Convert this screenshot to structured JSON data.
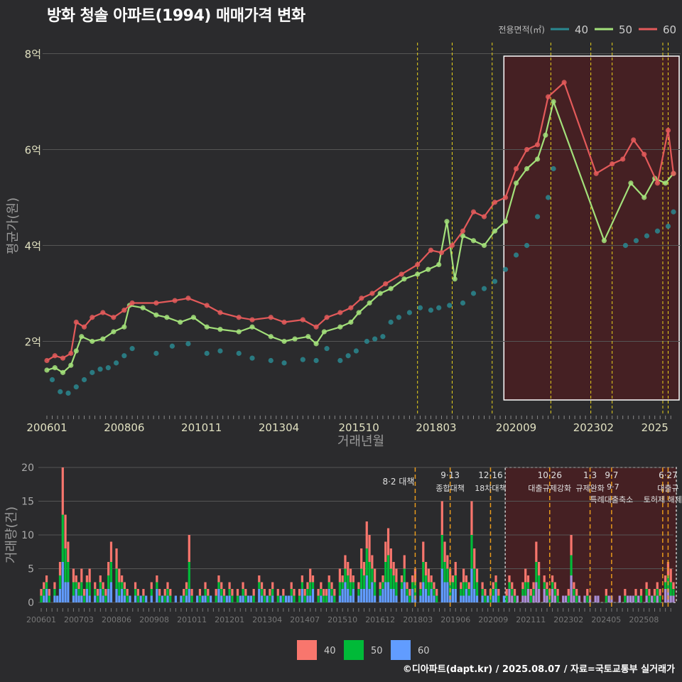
{
  "chart_data": {
    "title": "방화 청솔 아파트(1994) 매매가격 변화",
    "type": "line",
    "price_chart": {
      "xlabel": "거래년월",
      "ylabel": "평균가(원)",
      "x_range": [
        "2006-01",
        "2025-08"
      ],
      "y_range": [
        0.6,
        8.2
      ],
      "y_ticks": [
        {
          "v": 2,
          "label": "2억"
        },
        {
          "v": 4,
          "label": "4억"
        },
        {
          "v": 6,
          "label": "6억"
        },
        {
          "v": 8,
          "label": "8억"
        }
      ],
      "x_ticks": [
        "200601",
        "200806",
        "201011",
        "201304",
        "201510",
        "201803",
        "202009",
        "202302",
        "2025"
      ],
      "legend_title": "전용면적(㎡)",
      "series": [
        {
          "name": "40",
          "color": "#2a8890",
          "points": [
            [
              "2006-03",
              1.2
            ],
            [
              "2006-06",
              0.95
            ],
            [
              "2006-09",
              0.92
            ],
            [
              "2006-12",
              1.05
            ],
            [
              "2007-03",
              1.2
            ],
            [
              "2007-06",
              1.35
            ],
            [
              "2007-09",
              1.42
            ],
            [
              "2007-12",
              1.45
            ],
            [
              "2008-03",
              1.55
            ],
            [
              "2008-06",
              1.7
            ],
            [
              "2008-09",
              1.85
            ],
            [
              "2009-06",
              1.75
            ],
            [
              "2009-12",
              1.9
            ],
            [
              "2010-06",
              1.95
            ],
            [
              "2011-01",
              1.75
            ],
            [
              "2011-06",
              1.8
            ],
            [
              "2012-01",
              1.75
            ],
            [
              "2012-06",
              1.65
            ],
            [
              "2013-01",
              1.6
            ],
            [
              "2013-06",
              1.55
            ],
            [
              "2014-01",
              1.62
            ],
            [
              "2014-06",
              1.6
            ],
            [
              "2014-10",
              1.85
            ],
            [
              "2015-03",
              1.6
            ],
            [
              "2015-06",
              1.7
            ],
            [
              "2015-09",
              1.8
            ],
            [
              "2016-01",
              2.0
            ],
            [
              "2016-04",
              2.05
            ],
            [
              "2016-07",
              2.1
            ],
            [
              "2016-10",
              2.4
            ],
            [
              "2017-01",
              2.5
            ],
            [
              "2017-05",
              2.6
            ],
            [
              "2017-09",
              2.7
            ],
            [
              "2018-01",
              2.65
            ],
            [
              "2018-04",
              2.7
            ],
            [
              "2018-08",
              2.75
            ],
            [
              "2019-01",
              2.8
            ],
            [
              "2019-05",
              3.0
            ],
            [
              "2019-09",
              3.1
            ],
            [
              "2020-01",
              3.25
            ],
            [
              "2020-05",
              3.5
            ],
            [
              "2020-09",
              3.8
            ],
            [
              "2021-01",
              4.0
            ],
            [
              "2021-05",
              4.6
            ],
            [
              "2021-09",
              5.0
            ],
            [
              "2021-11",
              5.6
            ],
            [
              "2024-02",
              4.0
            ],
            [
              "2024-06",
              4.1
            ],
            [
              "2024-10",
              4.2
            ],
            [
              "2025-02",
              4.3
            ],
            [
              "2025-06",
              4.4
            ],
            [
              "2025-08",
              4.7
            ]
          ]
        },
        {
          "name": "50",
          "color": "#a3e07a",
          "points": [
            [
              "2006-01",
              1.4
            ],
            [
              "2006-04",
              1.45
            ],
            [
              "2006-07",
              1.35
            ],
            [
              "2006-10",
              1.5
            ],
            [
              "2006-12",
              1.8
            ],
            [
              "2007-02",
              2.1
            ],
            [
              "2007-06",
              2.0
            ],
            [
              "2007-10",
              2.05
            ],
            [
              "2008-02",
              2.2
            ],
            [
              "2008-06",
              2.3
            ],
            [
              "2008-08",
              2.75
            ],
            [
              "2009-01",
              2.7
            ],
            [
              "2009-06",
              2.55
            ],
            [
              "2009-10",
              2.5
            ],
            [
              "2010-03",
              2.4
            ],
            [
              "2010-08",
              2.5
            ],
            [
              "2011-01",
              2.3
            ],
            [
              "2011-06",
              2.25
            ],
            [
              "2012-01",
              2.2
            ],
            [
              "2012-06",
              2.3
            ],
            [
              "2013-01",
              2.1
            ],
            [
              "2013-06",
              2.0
            ],
            [
              "2013-10",
              2.05
            ],
            [
              "2014-03",
              2.1
            ],
            [
              "2014-06",
              1.95
            ],
            [
              "2014-09",
              2.2
            ],
            [
              "2015-03",
              2.3
            ],
            [
              "2015-07",
              2.4
            ],
            [
              "2015-10",
              2.6
            ],
            [
              "2016-02",
              2.8
            ],
            [
              "2016-06",
              3.0
            ],
            [
              "2016-10",
              3.1
            ],
            [
              "2017-03",
              3.3
            ],
            [
              "2017-08",
              3.4
            ],
            [
              "2017-12",
              3.5
            ],
            [
              "2018-04",
              3.6
            ],
            [
              "2018-07",
              4.5
            ],
            [
              "2018-10",
              3.3
            ],
            [
              "2019-01",
              4.2
            ],
            [
              "2019-05",
              4.1
            ],
            [
              "2019-09",
              4.0
            ],
            [
              "2020-01",
              4.3
            ],
            [
              "2020-05",
              4.5
            ],
            [
              "2020-09",
              5.3
            ],
            [
              "2021-01",
              5.6
            ],
            [
              "2021-05",
              5.8
            ],
            [
              "2021-08",
              6.3
            ],
            [
              "2021-11",
              7.0
            ],
            [
              "2023-06",
              4.1
            ],
            [
              "2024-04",
              5.3
            ],
            [
              "2024-09",
              5.0
            ],
            [
              "2025-01",
              5.4
            ],
            [
              "2025-05",
              5.3
            ],
            [
              "2025-08",
              5.5
            ]
          ]
        },
        {
          "name": "60",
          "color": "#e35a5a",
          "points": [
            [
              "2006-01",
              1.6
            ],
            [
              "2006-04",
              1.7
            ],
            [
              "2006-07",
              1.65
            ],
            [
              "2006-10",
              1.75
            ],
            [
              "2006-12",
              2.4
            ],
            [
              "2007-03",
              2.3
            ],
            [
              "2007-06",
              2.5
            ],
            [
              "2007-10",
              2.6
            ],
            [
              "2008-02",
              2.5
            ],
            [
              "2008-06",
              2.65
            ],
            [
              "2008-09",
              2.8
            ],
            [
              "2009-06",
              2.8
            ],
            [
              "2010-01",
              2.85
            ],
            [
              "2010-06",
              2.9
            ],
            [
              "2011-01",
              2.75
            ],
            [
              "2011-06",
              2.6
            ],
            [
              "2012-01",
              2.5
            ],
            [
              "2012-06",
              2.45
            ],
            [
              "2013-01",
              2.5
            ],
            [
              "2013-06",
              2.4
            ],
            [
              "2014-01",
              2.45
            ],
            [
              "2014-06",
              2.3
            ],
            [
              "2014-10",
              2.5
            ],
            [
              "2015-03",
              2.6
            ],
            [
              "2015-07",
              2.7
            ],
            [
              "2015-11",
              2.9
            ],
            [
              "2016-03",
              3.0
            ],
            [
              "2016-08",
              3.2
            ],
            [
              "2017-02",
              3.4
            ],
            [
              "2017-08",
              3.6
            ],
            [
              "2018-01",
              3.9
            ],
            [
              "2018-05",
              3.85
            ],
            [
              "2018-09",
              4.0
            ],
            [
              "2019-01",
              4.3
            ],
            [
              "2019-05",
              4.7
            ],
            [
              "2019-09",
              4.6
            ],
            [
              "2020-01",
              4.9
            ],
            [
              "2020-05",
              5.0
            ],
            [
              "2020-09",
              5.6
            ],
            [
              "2021-01",
              6.0
            ],
            [
              "2021-05",
              6.1
            ],
            [
              "2021-09",
              7.1
            ],
            [
              "2022-03",
              7.4
            ],
            [
              "2023-03",
              5.5
            ],
            [
              "2023-09",
              5.7
            ],
            [
              "2024-01",
              5.8
            ],
            [
              "2024-05",
              6.2
            ],
            [
              "2024-09",
              5.9
            ],
            [
              "2025-02",
              5.3
            ],
            [
              "2025-06",
              6.4
            ],
            [
              "2025-08",
              5.5
            ]
          ]
        }
      ]
    },
    "volume_chart": {
      "ylabel": "거래량(건)",
      "y_range": [
        0,
        20
      ],
      "y_ticks": [
        0,
        5,
        10,
        15,
        20
      ],
      "x_ticks": [
        "200601",
        "200703",
        "200806",
        "200908",
        "201011",
        "201201",
        "201304",
        "201407",
        "201510",
        "201612",
        "201803",
        "201906",
        "202009",
        "202111",
        "202302",
        "202405",
        "202508"
      ],
      "legend": [
        {
          "name": "40",
          "color": "#f8766d"
        },
        {
          "name": "50",
          "color": "#00ba38"
        },
        {
          "name": "60",
          "color": "#619cff"
        }
      ],
      "monthly_totals": [
        2,
        3,
        4,
        2,
        3,
        1,
        6,
        20,
        13,
        9,
        5,
        4,
        3,
        5,
        2,
        4,
        5,
        3,
        2,
        4,
        3,
        2,
        6,
        9,
        8,
        5,
        4,
        3,
        2,
        1,
        3,
        2,
        1,
        2,
        1,
        0,
        3,
        4,
        2,
        1,
        2,
        3,
        2,
        1,
        0,
        1,
        2,
        3,
        10,
        2,
        1,
        2,
        1,
        3,
        2,
        1,
        2,
        4,
        3,
        2,
        1,
        3,
        2,
        2,
        1,
        3,
        2,
        1,
        1,
        2,
        4,
        3,
        2,
        1,
        2,
        3,
        2,
        1,
        2,
        1,
        1,
        3,
        2,
        2,
        4,
        2,
        3,
        5,
        4,
        2,
        3,
        2,
        2,
        4,
        3,
        2,
        5,
        4,
        7,
        6,
        5,
        4,
        3,
        8,
        6,
        12,
        10,
        7,
        5,
        3,
        4,
        9,
        11,
        8,
        6,
        5,
        4,
        7,
        3,
        2,
        4,
        5,
        3,
        9,
        6,
        5,
        4,
        3,
        2,
        15,
        9,
        7,
        5,
        4,
        6,
        3,
        5,
        4,
        3,
        15,
        8,
        5,
        3,
        2,
        1,
        2,
        3,
        4,
        2,
        1,
        2,
        4,
        3,
        2,
        1,
        3,
        5,
        4,
        2,
        3,
        9,
        6,
        4,
        3,
        2,
        4,
        3,
        2,
        1,
        1,
        2,
        10,
        3,
        2,
        1,
        1,
        2,
        1,
        0,
        1,
        1,
        0,
        2,
        1,
        1,
        0,
        0,
        1,
        2,
        1,
        1,
        1,
        2,
        1,
        2,
        3,
        2,
        1,
        2,
        3,
        2,
        4,
        6,
        5,
        3
      ]
    },
    "policy_events": [
      {
        "date": "2017-08",
        "label": "8·2 대책",
        "label2": ""
      },
      {
        "date": "2018-09",
        "label": "9·13",
        "label2": "종합대책"
      },
      {
        "date": "2019-12",
        "label": "12·16",
        "label2": "18차대책"
      },
      {
        "date": "2021-10",
        "label": "10·26",
        "label2": "대출규제강화"
      },
      {
        "date": "2023-01",
        "label": "1·3",
        "label2": "규제완화"
      },
      {
        "date": "2023-09",
        "label": "9·7",
        "label2": "특례대출축소"
      },
      {
        "date": "2025-04",
        "label": "",
        "label2": "토허제 해제"
      },
      {
        "date": "2025-06",
        "label": "6·27",
        "label2": "대출규"
      }
    ],
    "highlight_range": [
      "2020-06",
      "2025-08"
    ]
  },
  "footer": "©디아파트(dapt.kr) / 2025.08.07 / 자료=국토교통부 실거래가",
  "colors": {
    "background": "#2b2b2d",
    "grid": "#555555",
    "policy_line": "#e8d21c",
    "highlight_fill": "#4a1f22",
    "highlight_border": "#ffffff"
  }
}
